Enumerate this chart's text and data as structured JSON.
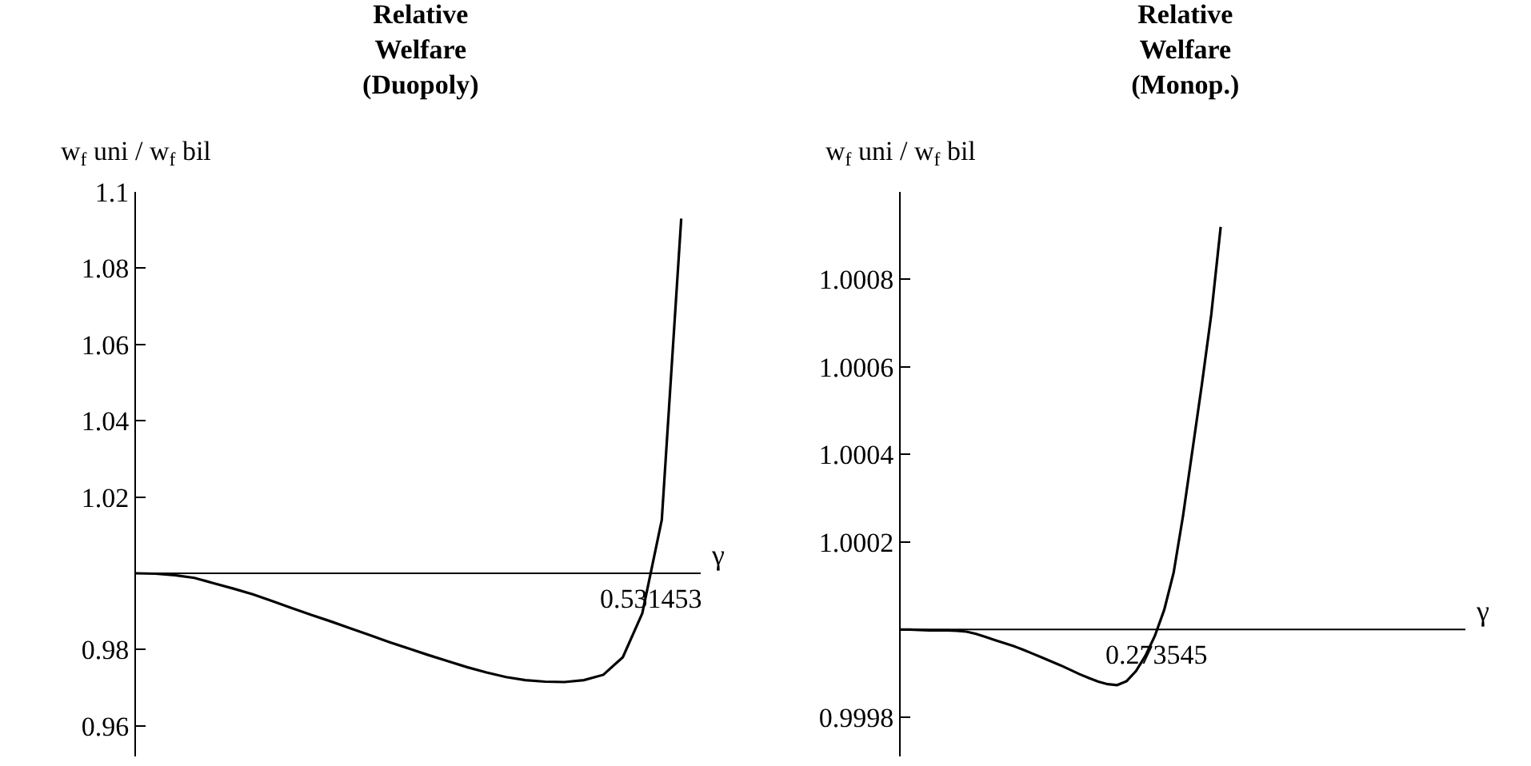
{
  "chart_data": [
    {
      "type": "line",
      "title": "Relative\nWelfare\n(Duopoly)",
      "ylabel": "w$_{f}$ uni / w$_{f}$ bil",
      "xlabel": "γ",
      "categories": [
        null,
        null,
        null,
        null,
        null,
        null,
        null,
        null,
        null,
        null,
        null,
        null,
        null,
        null,
        null,
        null,
        null,
        null,
        null,
        null,
        null,
        null,
        null,
        null,
        null,
        null,
        null,
        null,
        null,
        null
      ],
      "series": [
        {
          "color": "#000000",
          "values": [
            1,
            0.9999,
            0.9995,
            0.9988,
            0.9974,
            0.996,
            0.9945,
            0.9927,
            0.9909,
            0.9891,
            0.9874,
            0.9856,
            0.9838,
            0.982,
            0.9803,
            0.9786,
            0.977,
            0.9754,
            0.974,
            0.9728,
            0.972,
            0.9716,
            0.9715,
            0.972,
            0.9734,
            0.978,
            0.9895,
            1.014,
            1.093,
            null
          ]
        }
      ],
      "ylim": [
        0.952,
        1.1
      ],
      "yticks": [
        0.96,
        0.98,
        1.02,
        1.04,
        1.06,
        1.08,
        1.1
      ],
      "tick_labels": "y",
      "ref_lines": [
        {
          "axis": "y",
          "value": 1,
          "color": "#000000"
        }
      ],
      "annotations": [
        "0.531453"
      ]
    },
    {
      "type": "line",
      "title": "Relative\nWelfare\n(Monop.)",
      "ylabel": "w$_{f}$ uni / w$_{f}$ bil",
      "xlabel": "γ",
      "categories": [
        null,
        null,
        null,
        null,
        null,
        null,
        null,
        null,
        null,
        null,
        null,
        null,
        null,
        null,
        null,
        null,
        null,
        null,
        null,
        null,
        null,
        null,
        null,
        null,
        null,
        null,
        null,
        null,
        null,
        null,
        null,
        null,
        null,
        null,
        null,
        null,
        null,
        null,
        null,
        null,
        null,
        null,
        null,
        null,
        null,
        null,
        null,
        null,
        null,
        null,
        null,
        null,
        null,
        null,
        null,
        null,
        null,
        null,
        null,
        null,
        null
      ],
      "series": [
        {
          "color": "#000000",
          "values": [
            1,
            1,
            0.999999,
            0.999998,
            0.999998,
            0.999998,
            0.999997,
            0.999995,
            0.99999,
            0.999983,
            0.999976,
            0.999969,
            0.999962,
            0.999954,
            0.999945,
            0.999936,
            0.999927,
            0.999918,
            0.999908,
            0.999898,
            0.999889,
            0.999881,
            0.999875,
            0.999873,
            0.999882,
            0.999905,
            0.99994,
            0.999985,
            1.000045,
            1.00013,
            1.00026,
            1.00041,
            1.00056,
            1.00072,
            1.00092,
            null,
            null,
            null,
            null,
            null,
            null,
            null,
            null,
            null,
            null,
            null,
            null,
            null,
            null,
            null,
            null,
            null,
            null,
            null,
            null,
            null,
            null,
            null,
            null,
            null,
            null
          ]
        }
      ],
      "ylim": [
        0.99971,
        1.001
      ],
      "yticks": [
        0.9998,
        1.0002,
        1.0004,
        1.0006,
        1.0008
      ],
      "tick_labels": "y",
      "ref_lines": [
        {
          "axis": "y",
          "value": 1,
          "color": "#000000"
        }
      ],
      "annotations": [
        "0.273545"
      ]
    }
  ]
}
